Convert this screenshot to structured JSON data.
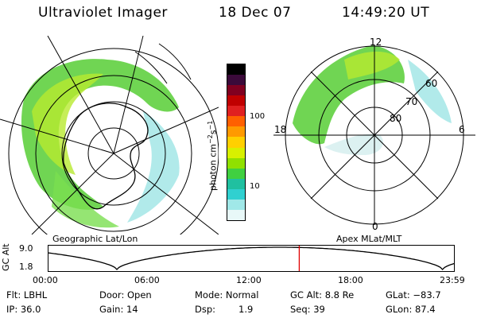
{
  "header": {
    "instrument": "Ultraviolet Imager",
    "date": "18 Dec 07",
    "time": "14:49:20 UT"
  },
  "geo_panel": {
    "caption": "Geographic Lat/Lon"
  },
  "mag_panel": {
    "caption": "Apex MLat/MLT",
    "mlt_labels": {
      "top": "12",
      "right": "6",
      "bottom": "0",
      "left": "18"
    },
    "lat_labels": [
      "60",
      "70",
      "80"
    ]
  },
  "colorbar": {
    "unit_label": "photon cm",
    "unit_exp1": "−2",
    "unit_mid": "s",
    "unit_exp2": "−1",
    "ticks": [
      "100",
      "10"
    ],
    "colors": [
      "#000000",
      "#3b0a3a",
      "#800020",
      "#c00000",
      "#e02020",
      "#ff6000",
      "#ff9a00",
      "#ffd000",
      "#d8f000",
      "#90e000",
      "#40d040",
      "#20c0a0",
      "#30d0d0",
      "#a0e8e8",
      "#e8f8f8"
    ]
  },
  "timeline": {
    "ylabel": "GC Alt",
    "y_ticks": [
      "9.0",
      "1.8"
    ],
    "x_ticks": [
      "00:00",
      "06:00",
      "12:00",
      "18:00",
      "23:59"
    ],
    "current_time_fraction": 0.618
  },
  "footer": {
    "flt": "Flt: LBHL",
    "ip": "IP: 36.0",
    "door": "Door: Open",
    "gain": "Gain: 14",
    "mode": "Mode: Normal",
    "dsp": "Dsp:",
    "dsp_val": "1.9",
    "gcalt": "GC Alt: 8.8 Re",
    "seq": "Seq: 39",
    "glat": "GLat: −83.7",
    "glon": "GLon: 87.4"
  }
}
